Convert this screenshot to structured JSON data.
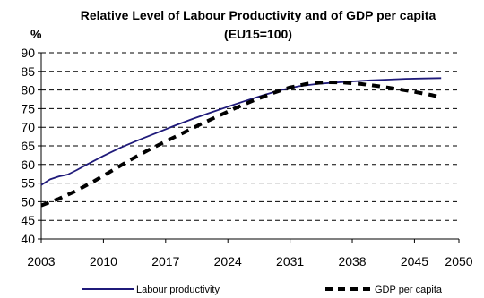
{
  "chart_data": {
    "type": "line",
    "title_line1": "Relative Level of Labour Productivity and of GDP per capita",
    "title_line2": "(EU15=100)",
    "ylabel": "%",
    "ylim": [
      40,
      90
    ],
    "xlim": [
      2003,
      2050
    ],
    "y_ticks": [
      40,
      45,
      50,
      55,
      60,
      65,
      70,
      75,
      80,
      85,
      90
    ],
    "x_ticks": [
      2003,
      2010,
      2017,
      2024,
      2031,
      2038,
      2045,
      2050
    ],
    "grid": "horizontal dashed",
    "legend_position": "bottom",
    "series": [
      {
        "name": "Labour productivity",
        "style": "solid",
        "color": "#1f1a7a",
        "x": [
          2003,
          2004,
          2005,
          2006,
          2007,
          2008,
          2010,
          2012,
          2014,
          2016,
          2018,
          2020,
          2022,
          2024,
          2026,
          2028,
          2030,
          2032,
          2034,
          2036,
          2038,
          2040,
          2042,
          2044,
          2046,
          2048
        ],
        "y": [
          54.5,
          56,
          56.8,
          57.3,
          58.5,
          59.8,
          62.3,
          64.6,
          66.6,
          68.5,
          70.4,
          72.2,
          73.9,
          75.5,
          77.1,
          78.6,
          80.0,
          81.0,
          81.6,
          82.0,
          82.3,
          82.6,
          82.8,
          83.0,
          83.1,
          83.2
        ]
      },
      {
        "name": "GDP per capita",
        "style": "dashed",
        "color": "#000000",
        "x": [
          2003,
          2005,
          2007,
          2009,
          2011,
          2013,
          2015,
          2017,
          2019,
          2021,
          2023,
          2025,
          2027,
          2029,
          2031,
          2033,
          2035,
          2037,
          2039,
          2041,
          2043,
          2045,
          2047,
          2048
        ],
        "y": [
          49,
          50.8,
          53,
          55.6,
          58.4,
          61.2,
          63.8,
          66.2,
          68.5,
          70.9,
          73.1,
          75.3,
          77.3,
          79.1,
          80.7,
          81.7,
          82.1,
          82.0,
          81.6,
          81.0,
          80.3,
          79.5,
          78.6,
          78.0
        ]
      }
    ]
  }
}
